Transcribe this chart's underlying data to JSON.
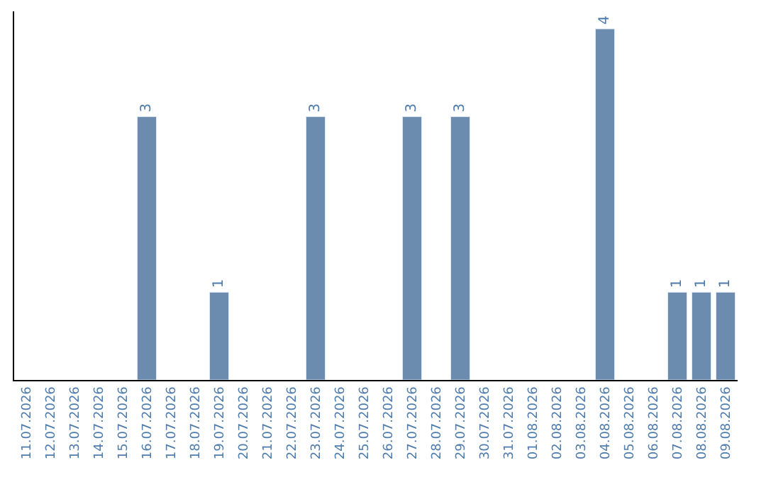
{
  "chart_data": {
    "type": "bar",
    "categories": [
      "11.07.2026",
      "12.07.2026",
      "13.07.2026",
      "14.07.2026",
      "15.07.2026",
      "16.07.2026",
      "17.07.2026",
      "18.07.2026",
      "19.07.2026",
      "20.07.2026",
      "21.07.2026",
      "22.07.2026",
      "23.07.2026",
      "24.07.2026",
      "25.07.2026",
      "26.07.2026",
      "27.07.2026",
      "28.07.2026",
      "29.07.2026",
      "30.07.2026",
      "31.07.2026",
      "01.08.2026",
      "02.08.2026",
      "03.08.2026",
      "04.08.2026",
      "05.08.2026",
      "06.08.2026",
      "07.08.2026",
      "08.08.2026",
      "09.08.2026"
    ],
    "values": [
      null,
      null,
      null,
      null,
      null,
      3,
      null,
      null,
      1,
      null,
      null,
      null,
      3,
      null,
      null,
      null,
      3,
      null,
      3,
      null,
      null,
      null,
      null,
      null,
      4,
      null,
      null,
      1,
      1,
      1
    ],
    "color": "#6b8cae",
    "ylim": [
      0,
      4.2
    ],
    "tick_labels": "x",
    "data_labels": true,
    "legend": false
  }
}
